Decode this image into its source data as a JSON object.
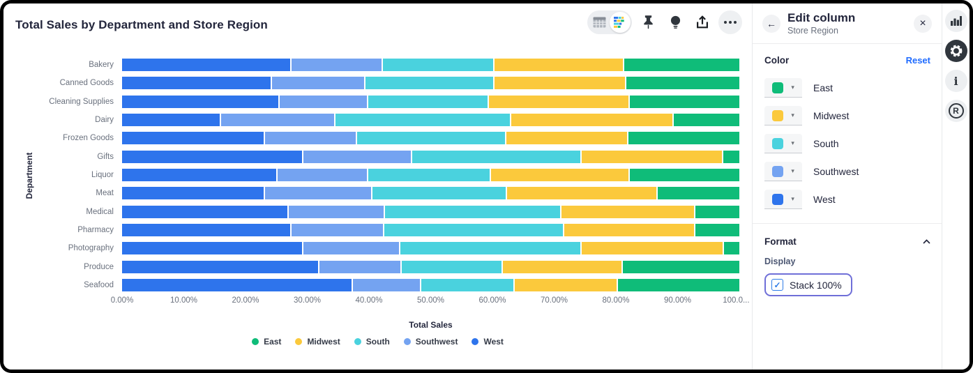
{
  "glyphs": {
    "back_arrow": "←",
    "close": "×",
    "caret": "▾",
    "check": "✓"
  },
  "card": {
    "title": "Total Sales by Department and Store Region"
  },
  "toolbar": {
    "icons": [
      "table-toggle-icon",
      "chart-toggle-icon",
      "pin-icon",
      "lightbulb-icon",
      "share-icon",
      "ellipsis-icon"
    ],
    "selected": "chart-toggle-icon"
  },
  "chart_data": {
    "type": "bar",
    "orientation": "horizontal",
    "stacked": true,
    "stack_100_percent": true,
    "grid": false,
    "legend_position": "bottom",
    "xlabel": "Total Sales",
    "ylabel": "Department",
    "xlim": [
      0,
      100
    ],
    "x_ticks": [
      "0.00%",
      "10.00%",
      "20.00%",
      "30.00%",
      "40.00%",
      "50.00%",
      "60.00%",
      "70.00%",
      "80.00%",
      "90.00%",
      "100.0..."
    ],
    "categories": [
      "Bakery",
      "Canned Goods",
      "Cleaning Supplies",
      "Dairy",
      "Frozen Goods",
      "Gifts",
      "Liquor",
      "Meat",
      "Medical",
      "Pharmacy",
      "Photography",
      "Produce",
      "Seafood"
    ],
    "series": [
      {
        "name": "West",
        "color": "#2E74EC",
        "values": [
          27.5,
          24.3,
          25.5,
          16.0,
          23.2,
          29.4,
          25.2,
          23.2,
          27.0,
          27.5,
          29.4,
          32.0,
          37.5
        ]
      },
      {
        "name": "Southwest",
        "color": "#74A3F1",
        "values": [
          14.7,
          15.0,
          14.2,
          18.4,
          14.8,
          17.6,
          14.6,
          17.3,
          15.5,
          14.9,
          15.7,
          13.3,
          11.0
        ]
      },
      {
        "name": "South",
        "color": "#4AD2DE",
        "values": [
          18.1,
          20.9,
          19.5,
          28.5,
          24.2,
          27.5,
          19.9,
          21.7,
          28.6,
          29.2,
          29.4,
          16.3,
          15.0
        ]
      },
      {
        "name": "Midwest",
        "color": "#FBC93C",
        "values": [
          21.0,
          21.2,
          22.8,
          26.3,
          19.7,
          22.9,
          22.5,
          24.5,
          21.7,
          21.2,
          23.1,
          19.4,
          16.7
        ]
      },
      {
        "name": "East",
        "color": "#0FBC79",
        "values": [
          18.8,
          18.5,
          17.9,
          10.7,
          18.2,
          2.6,
          17.9,
          13.3,
          7.2,
          7.2,
          2.5,
          19.0,
          19.8
        ]
      }
    ],
    "legend": [
      {
        "label": "East",
        "color": "#0FBC79"
      },
      {
        "label": "Midwest",
        "color": "#FBC93C"
      },
      {
        "label": "South",
        "color": "#4AD2DE"
      },
      {
        "label": "Southwest",
        "color": "#74A3F1"
      },
      {
        "label": "West",
        "color": "#2E74EC"
      }
    ]
  },
  "panel": {
    "title": "Edit column",
    "subtitle": "Store Region",
    "color_section": {
      "label": "Color",
      "reset_label": "Reset",
      "items": [
        {
          "label": "East",
          "color": "#0FBC79"
        },
        {
          "label": "Midwest",
          "color": "#FBC93C"
        },
        {
          "label": "South",
          "color": "#4AD2DE"
        },
        {
          "label": "Southwest",
          "color": "#74A3F1"
        },
        {
          "label": "West",
          "color": "#2E74EC"
        }
      ]
    },
    "format_section": {
      "label": "Format",
      "display_label": "Display",
      "checkbox_label": "Stack 100%",
      "checked": true
    }
  },
  "rail": {
    "icons": [
      "bar-chart-icon",
      "gear-icon",
      "info-icon",
      "r-language-icon"
    ],
    "active": "gear-icon",
    "r_glyph": "R"
  },
  "colors": {
    "accent_link": "#1F6BFF",
    "focus_ring": "#6F6FD8",
    "checkbox": "#2E7CE8",
    "title_text": "#23263c",
    "muted_text": "#69707d",
    "rail_active_bg": "#30363D"
  }
}
